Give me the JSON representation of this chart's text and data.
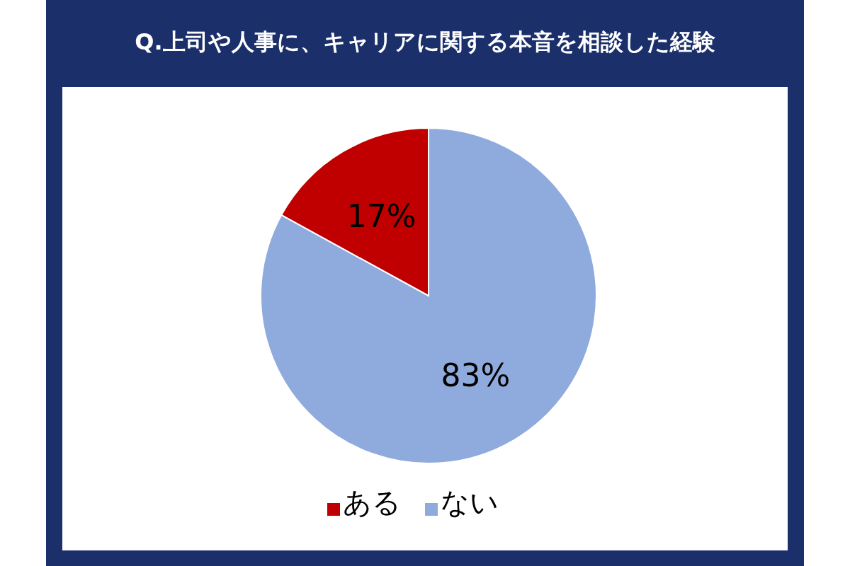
{
  "chart_data": {
    "type": "pie",
    "title": "Q.上司や人事に、キャリアに関する本音を相談した経験",
    "categories": [
      "ない",
      "ある"
    ],
    "values": [
      83,
      17
    ],
    "colors": [
      "#8faadc",
      "#c00000"
    ],
    "value_labels": [
      "83%",
      "17%"
    ],
    "legend": "bottom"
  }
}
